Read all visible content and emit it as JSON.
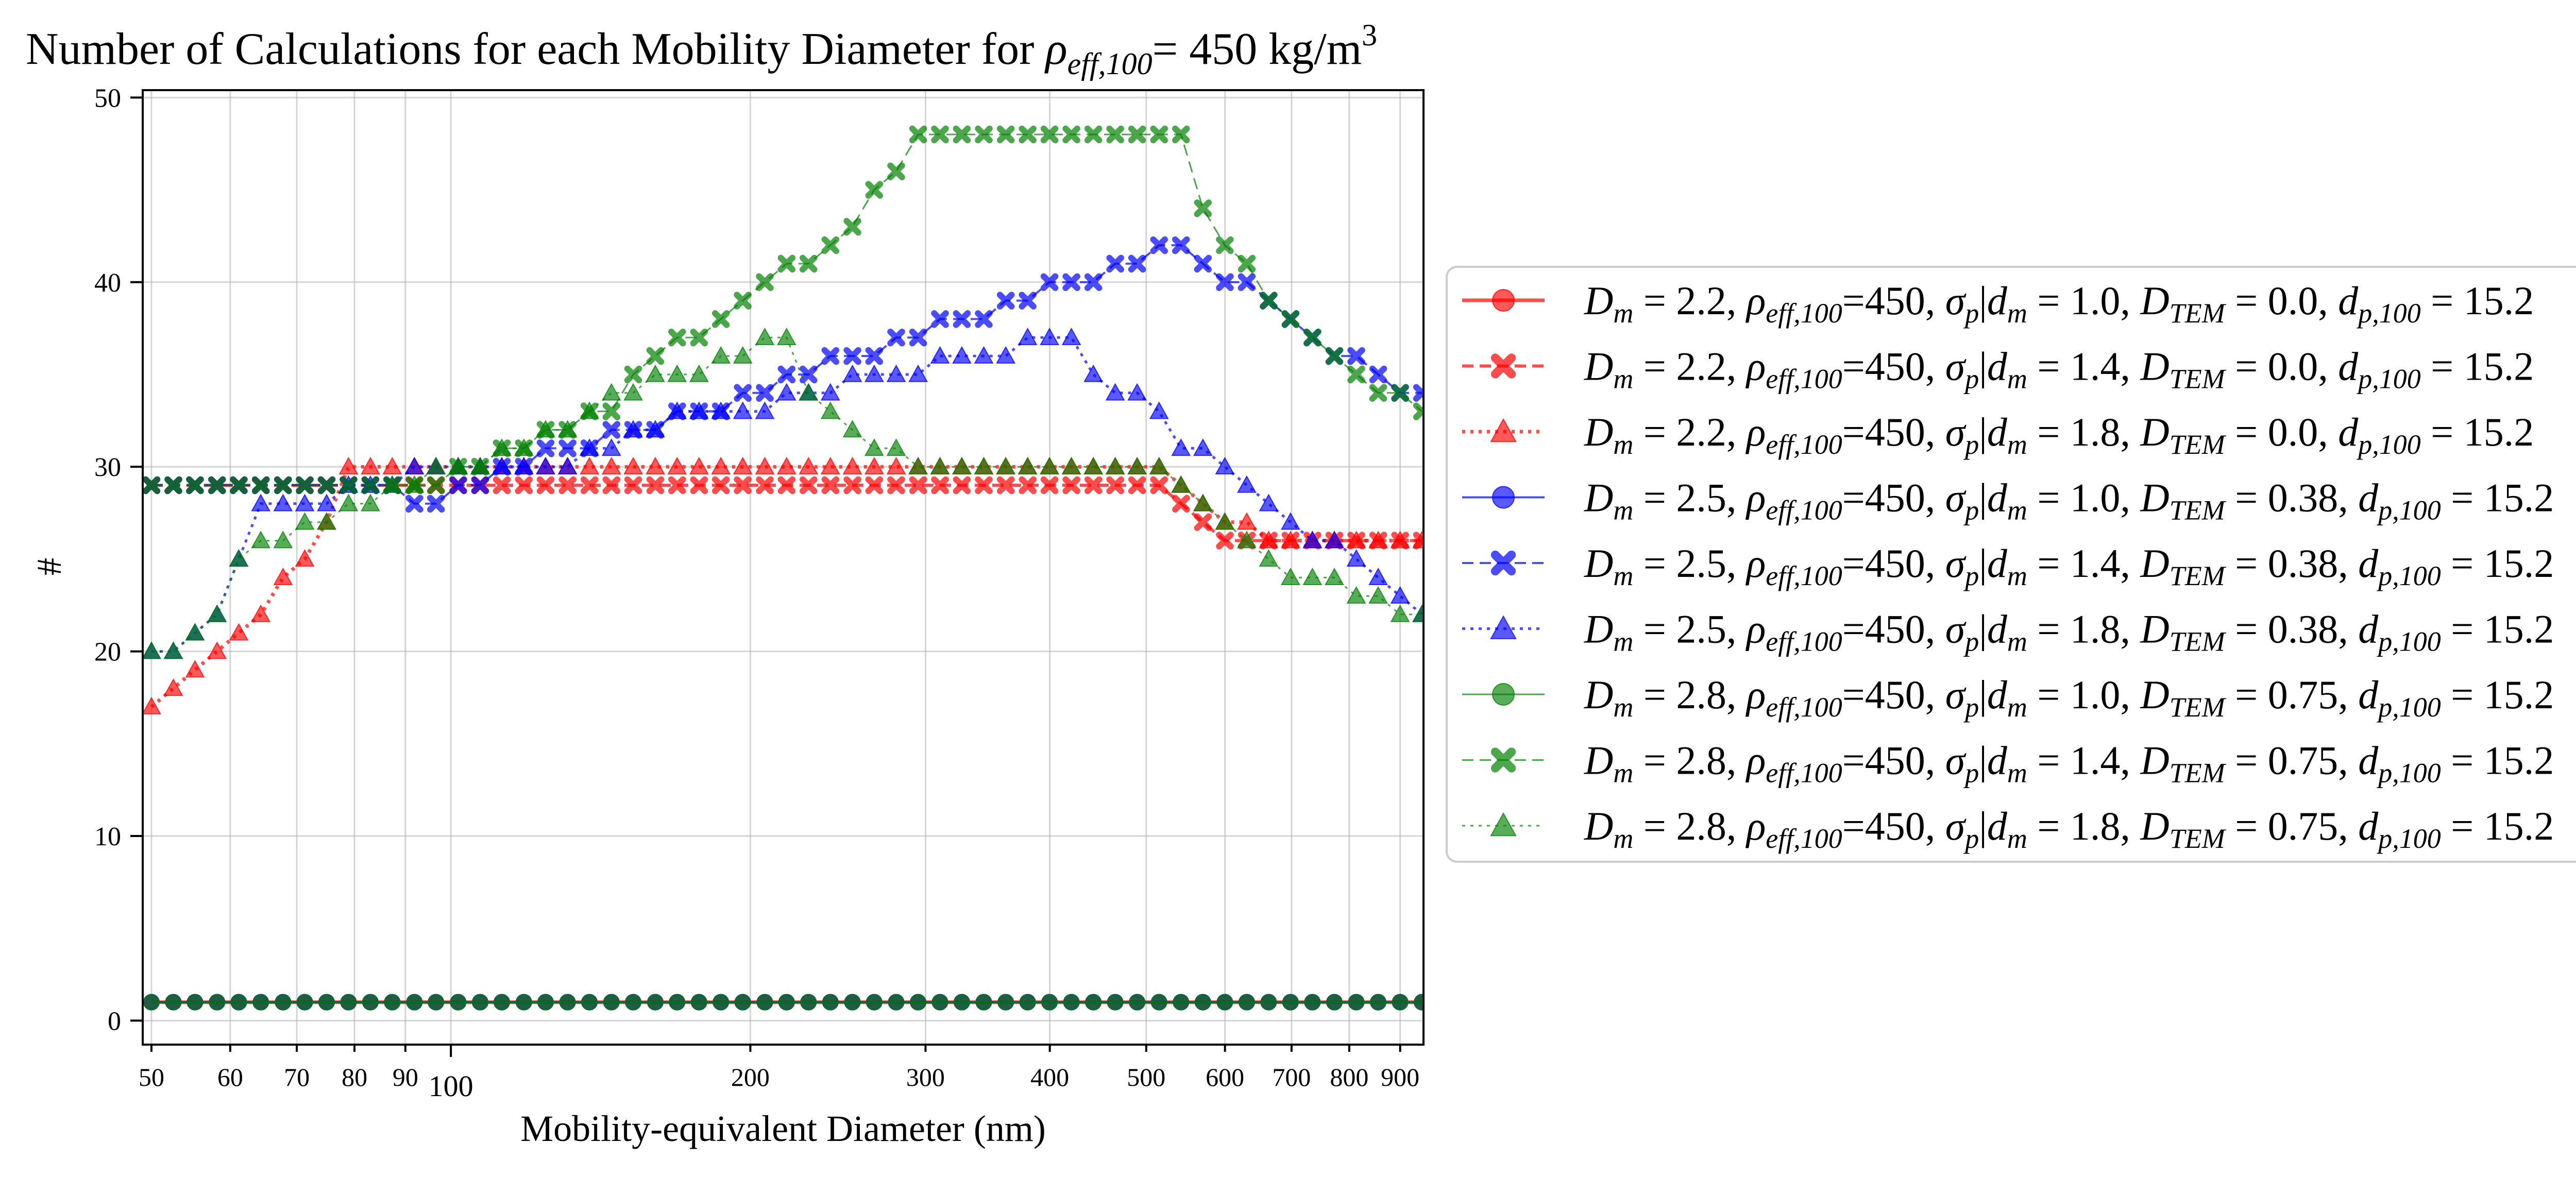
{
  "chart_data": {
    "type": "scatter",
    "title": "Number of Calculations for each Mobility Diameter for ρ_{eff,100}= 450 kg/m^3",
    "title_parts": {
      "pre": "Number of Calculations for each Mobility Diameter for ",
      "rho": "ρ",
      "sub": "eff,100",
      "mid": "= 450 kg/m",
      "sup": "3"
    },
    "xlabel": "Mobility-equivalent Diameter (nm)",
    "ylabel": "#",
    "x_scale": "log",
    "xlim": [
      49,
      950
    ],
    "ylim": [
      -1.3,
      50.4
    ],
    "x_ticks": [
      50,
      60,
      70,
      80,
      90,
      100,
      200,
      300,
      400,
      500,
      600,
      700,
      800,
      900
    ],
    "x_tick_labels": [
      "50",
      "60",
      "70",
      "80",
      "90",
      "100",
      "200",
      "300",
      "400",
      "500",
      "600",
      "700",
      "800",
      "900"
    ],
    "y_ticks": [
      0,
      10,
      20,
      30,
      40,
      50
    ],
    "y_tick_labels": [
      "0",
      "10",
      "20",
      "30",
      "40",
      "50"
    ],
    "grid": true,
    "legend_position": "outside right",
    "x": [
      50.0,
      52.6,
      55.3,
      58.2,
      61.2,
      64.4,
      67.8,
      71.3,
      75.0,
      78.9,
      83.0,
      87.3,
      91.9,
      96.6,
      101.7,
      107.0,
      112.5,
      118.4,
      124.5,
      131.0,
      137.8,
      145.0,
      152.5,
      160.5,
      168.8,
      177.6,
      186.8,
      196.5,
      206.8,
      217.5,
      228.8,
      240.7,
      253.3,
      266.4,
      280.3,
      294.9,
      310.2,
      326.3,
      343.3,
      361.2,
      380.0,
      399.7,
      420.5,
      442.4,
      465.4,
      489.6,
      515.1,
      541.9,
      570.1,
      599.8,
      631.0,
      663.8,
      698.3,
      734.6,
      772.9,
      813.1,
      855.4,
      899.9,
      946.7
    ],
    "series": [
      {
        "legend": {
          "Dm": "2.2",
          "sigma": "1.0",
          "DTEM": "0.0",
          "dp": "15.2"
        },
        "color": "#ff0000",
        "linestyle": "solid",
        "marker": "circle",
        "values": [
          1,
          1,
          1,
          1,
          1,
          1,
          1,
          1,
          1,
          1,
          1,
          1,
          1,
          1,
          1,
          1,
          1,
          1,
          1,
          1,
          1,
          1,
          1,
          1,
          1,
          1,
          1,
          1,
          1,
          1,
          1,
          1,
          1,
          1,
          1,
          1,
          1,
          1,
          1,
          1,
          1,
          1,
          1,
          1,
          1,
          1,
          1,
          1,
          1,
          1,
          1,
          1,
          1,
          1,
          1,
          1,
          1,
          1,
          1
        ]
      },
      {
        "legend": {
          "Dm": "2.2",
          "sigma": "1.4",
          "DTEM": "0.0",
          "dp": "15.2"
        },
        "color": "#ff0000",
        "linestyle": "dashed",
        "marker": "x",
        "values": [
          29,
          29,
          29,
          29,
          29,
          29,
          29,
          29,
          29,
          29,
          29,
          29,
          29,
          29,
          29,
          29,
          29,
          29,
          29,
          29,
          29,
          29,
          29,
          29,
          29,
          29,
          29,
          29,
          29,
          29,
          29,
          29,
          29,
          29,
          29,
          29,
          29,
          29,
          29,
          29,
          29,
          29,
          29,
          29,
          29,
          29,
          29,
          28,
          27,
          26,
          26,
          26,
          26,
          26,
          26,
          26,
          26,
          26,
          26
        ]
      },
      {
        "legend": {
          "Dm": "2.2",
          "sigma": "1.8",
          "DTEM": "0.0",
          "dp": "15.2"
        },
        "color": "#ff0000",
        "linestyle": "dotted",
        "marker": "triangle",
        "values": [
          17,
          18,
          19,
          20,
          21,
          22,
          24,
          25,
          27,
          30,
          30,
          30,
          30,
          30,
          30,
          30,
          30,
          30,
          30,
          30,
          30,
          30,
          30,
          30,
          30,
          30,
          30,
          30,
          30,
          30,
          30,
          30,
          30,
          30,
          30,
          30,
          30,
          30,
          30,
          30,
          30,
          30,
          30,
          30,
          30,
          30,
          30,
          29,
          28,
          27,
          27,
          26,
          26,
          26,
          26,
          26,
          26,
          26,
          26
        ]
      },
      {
        "legend": {
          "Dm": "2.5",
          "sigma": "1.0",
          "DTEM": "0.38",
          "dp": "15.2"
        },
        "color": "#0000ff",
        "linestyle": "solid",
        "marker": "circle",
        "values": [
          1,
          1,
          1,
          1,
          1,
          1,
          1,
          1,
          1,
          1,
          1,
          1,
          1,
          1,
          1,
          1,
          1,
          1,
          1,
          1,
          1,
          1,
          1,
          1,
          1,
          1,
          1,
          1,
          1,
          1,
          1,
          1,
          1,
          1,
          1,
          1,
          1,
          1,
          1,
          1,
          1,
          1,
          1,
          1,
          1,
          1,
          1,
          1,
          1,
          1,
          1,
          1,
          1,
          1,
          1,
          1,
          1,
          1,
          1
        ]
      },
      {
        "legend": {
          "Dm": "2.5",
          "sigma": "1.4",
          "DTEM": "0.38",
          "dp": "15.2"
        },
        "color": "#0000ff",
        "linestyle": "dashed",
        "marker": "x",
        "values": [
          29,
          29,
          29,
          29,
          29,
          29,
          29,
          29,
          29,
          29,
          29,
          29,
          28,
          28,
          29,
          29,
          30,
          30,
          31,
          31,
          31,
          32,
          32,
          32,
          33,
          33,
          33,
          34,
          34,
          35,
          35,
          36,
          36,
          36,
          37,
          37,
          38,
          38,
          38,
          39,
          39,
          40,
          40,
          40,
          41,
          41,
          42,
          42,
          41,
          40,
          40,
          39,
          38,
          37,
          36,
          36,
          35,
          34,
          34
        ]
      },
      {
        "legend": {
          "Dm": "2.5",
          "sigma": "1.8",
          "DTEM": "0.38",
          "dp": "15.2"
        },
        "color": "#0000ff",
        "linestyle": "dotted",
        "marker": "triangle",
        "values": [
          20,
          20,
          21,
          22,
          25,
          28,
          28,
          28,
          28,
          29,
          29,
          29,
          30,
          30,
          30,
          30,
          30,
          30,
          30,
          30,
          31,
          31,
          32,
          32,
          33,
          33,
          33,
          33,
          33,
          34,
          34,
          34,
          35,
          35,
          35,
          35,
          36,
          36,
          36,
          36,
          37,
          37,
          37,
          35,
          34,
          34,
          33,
          31,
          31,
          30,
          29,
          28,
          27,
          26,
          26,
          25,
          24,
          23,
          22
        ]
      },
      {
        "legend": {
          "Dm": "2.8",
          "sigma": "1.0",
          "DTEM": "0.75",
          "dp": "15.2"
        },
        "color": "#008000",
        "linestyle": "solid",
        "marker": "circle",
        "values": [
          1,
          1,
          1,
          1,
          1,
          1,
          1,
          1,
          1,
          1,
          1,
          1,
          1,
          1,
          1,
          1,
          1,
          1,
          1,
          1,
          1,
          1,
          1,
          1,
          1,
          1,
          1,
          1,
          1,
          1,
          1,
          1,
          1,
          1,
          1,
          1,
          1,
          1,
          1,
          1,
          1,
          1,
          1,
          1,
          1,
          1,
          1,
          1,
          1,
          1,
          1,
          1,
          1,
          1,
          1,
          1,
          1,
          1,
          1
        ]
      },
      {
        "legend": {
          "Dm": "2.8",
          "sigma": "1.4",
          "DTEM": "0.75",
          "dp": "15.2"
        },
        "color": "#008000",
        "linestyle": "dashed",
        "marker": "x",
        "values": [
          29,
          29,
          29,
          29,
          29,
          29,
          29,
          29,
          29,
          29,
          29,
          29,
          29,
          29,
          30,
          30,
          31,
          31,
          32,
          32,
          33,
          33,
          35,
          36,
          37,
          37,
          38,
          39,
          40,
          41,
          41,
          42,
          43,
          45,
          46,
          48,
          48,
          48,
          48,
          48,
          48,
          48,
          48,
          48,
          48,
          48,
          48,
          48,
          44,
          42,
          41,
          39,
          38,
          37,
          36,
          35,
          34,
          34,
          33
        ]
      },
      {
        "legend": {
          "Dm": "2.8",
          "sigma": "1.8",
          "DTEM": "0.75",
          "dp": "15.2"
        },
        "color": "#008000",
        "linestyle": "dotted",
        "marker": "triangle",
        "values": [
          20,
          20,
          21,
          22,
          25,
          26,
          26,
          27,
          27,
          28,
          28,
          29,
          29,
          30,
          30,
          30,
          31,
          31,
          32,
          32,
          33,
          34,
          34,
          35,
          35,
          35,
          36,
          36,
          37,
          37,
          34,
          33,
          32,
          31,
          31,
          30,
          30,
          30,
          30,
          30,
          30,
          30,
          30,
          30,
          30,
          30,
          30,
          29,
          28,
          27,
          26,
          25,
          24,
          24,
          24,
          23,
          23,
          22,
          22
        ]
      }
    ]
  }
}
